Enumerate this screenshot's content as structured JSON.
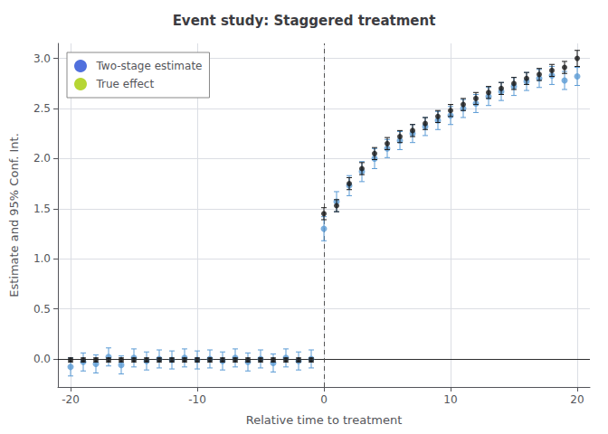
{
  "chart_data": {
    "type": "scatter",
    "title": "Event study: Staggered treatment",
    "xlabel": "Relative time to treatment",
    "ylabel": "Estimate and 95% Conf. Int.",
    "x": [
      -20,
      -19,
      -18,
      -17,
      -16,
      -15,
      -14,
      -13,
      -12,
      -11,
      -10,
      -9,
      -8,
      -7,
      -6,
      -5,
      -4,
      -3,
      -2,
      -1,
      0,
      1,
      2,
      3,
      4,
      5,
      6,
      7,
      8,
      9,
      10,
      11,
      12,
      13,
      14,
      15,
      16,
      17,
      18,
      19,
      20
    ],
    "series": [
      {
        "name": "Two-stage estimate",
        "color": "#5b9bd5",
        "marker": "circle",
        "values": [
          -0.08,
          -0.03,
          -0.05,
          0.02,
          -0.06,
          0.01,
          -0.02,
          0.0,
          -0.01,
          0.01,
          -0.01,
          0.0,
          -0.02,
          0.01,
          -0.03,
          0.0,
          -0.04,
          0.01,
          -0.02,
          0.0,
          1.3,
          1.57,
          1.73,
          1.87,
          2.0,
          2.1,
          2.18,
          2.25,
          2.32,
          2.38,
          2.43,
          2.5,
          2.55,
          2.62,
          2.67,
          2.72,
          2.77,
          2.8,
          2.83,
          2.78,
          2.82
        ],
        "errors": [
          0.09,
          0.09,
          0.09,
          0.09,
          0.09,
          0.09,
          0.09,
          0.09,
          0.09,
          0.09,
          0.09,
          0.09,
          0.09,
          0.09,
          0.09,
          0.09,
          0.09,
          0.09,
          0.09,
          0.09,
          0.12,
          0.1,
          0.1,
          0.1,
          0.1,
          0.09,
          0.09,
          0.09,
          0.09,
          0.09,
          0.09,
          0.09,
          0.09,
          0.09,
          0.09,
          0.09,
          0.09,
          0.09,
          0.09,
          0.09,
          0.09
        ]
      },
      {
        "name": "True effect",
        "color": "#1a1a1a",
        "marker": "circle",
        "values": [
          -0.01,
          -0.01,
          -0.01,
          -0.01,
          -0.01,
          -0.01,
          -0.01,
          -0.01,
          -0.01,
          -0.01,
          -0.01,
          -0.01,
          -0.01,
          -0.01,
          -0.01,
          -0.01,
          -0.01,
          -0.01,
          -0.01,
          -0.01,
          1.45,
          1.53,
          1.75,
          1.9,
          2.05,
          2.15,
          2.22,
          2.28,
          2.35,
          2.42,
          2.48,
          2.54,
          2.6,
          2.66,
          2.7,
          2.75,
          2.8,
          2.84,
          2.88,
          2.91,
          3.0
        ],
        "errors": [
          0.02,
          0.02,
          0.02,
          0.02,
          0.02,
          0.02,
          0.02,
          0.02,
          0.02,
          0.02,
          0.02,
          0.02,
          0.02,
          0.02,
          0.02,
          0.02,
          0.02,
          0.02,
          0.02,
          0.02,
          0.06,
          0.06,
          0.06,
          0.06,
          0.06,
          0.06,
          0.06,
          0.06,
          0.06,
          0.06,
          0.06,
          0.06,
          0.06,
          0.06,
          0.06,
          0.06,
          0.06,
          0.06,
          0.06,
          0.06,
          0.08
        ]
      }
    ],
    "xlim": [
      -21,
      21
    ],
    "xticks": [
      -20,
      -10,
      0,
      10,
      20
    ],
    "ylim": [
      -0.28,
      3.15
    ],
    "yticks": [
      {
        "value": 0.0,
        "label": "0.0"
      },
      0.5,
      {
        "value": 1.0,
        "label": "1.0"
      },
      1.5,
      {
        "value": 2.0,
        "label": "2.0"
      },
      2.5,
      {
        "value": 3.0,
        "label": "3.0"
      }
    ],
    "hlines": [
      0
    ],
    "vlines": [
      0
    ],
    "grid": true,
    "legend": "upper left"
  }
}
